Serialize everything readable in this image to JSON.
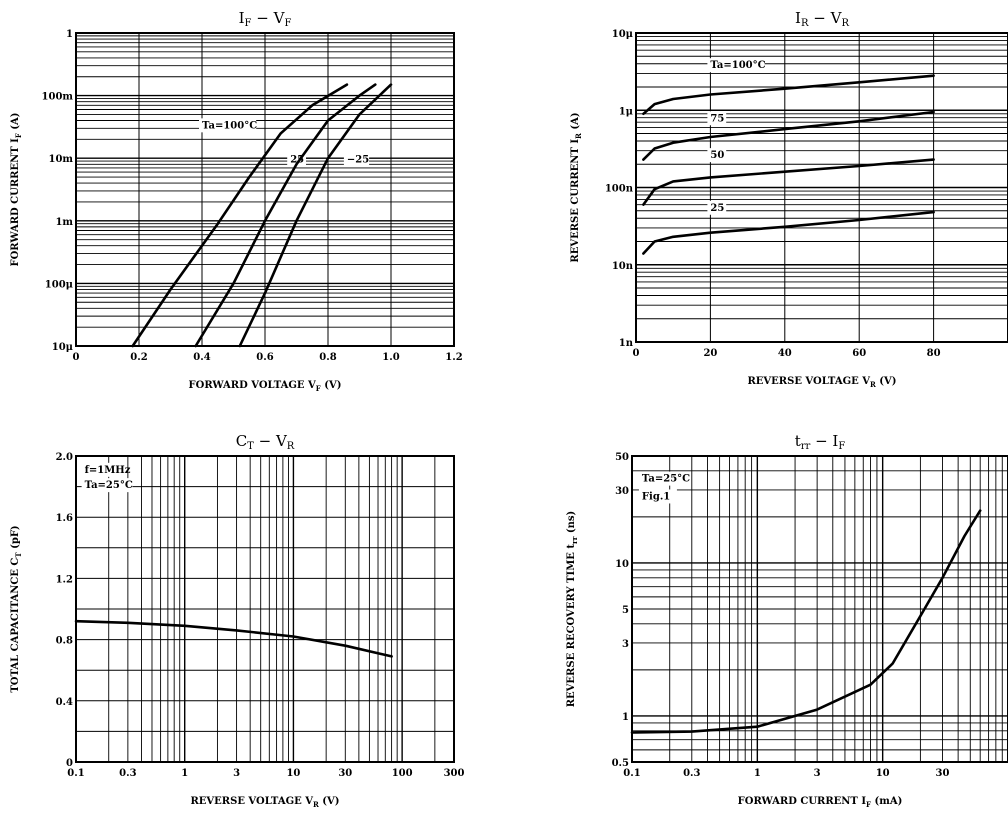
{
  "chart_data": [
    {
      "id": "if_vf",
      "type": "line",
      "title": {
        "main": "I",
        "sub1": "F",
        "sep": " − V",
        "sub2": "F"
      },
      "xlabel": {
        "text": "FORWARD VOLTAGE   V",
        "sub": "F",
        "unit": "   (V)"
      },
      "ylabel": {
        "text": "FORWARD CURRENT   I",
        "sub": "F",
        "unit": "   (A)"
      },
      "x_scale": "linear",
      "y_scale": "log",
      "xlim": [
        0,
        1.2
      ],
      "ylim": [
        1e-05,
        1
      ],
      "x_ticks": [
        {
          "v": 0,
          "label": "0"
        },
        {
          "v": 0.2,
          "label": "0.2"
        },
        {
          "v": 0.4,
          "label": "0.4"
        },
        {
          "v": 0.6,
          "label": "0.6"
        },
        {
          "v": 0.8,
          "label": "0.8"
        },
        {
          "v": 1.0,
          "label": "1.0"
        },
        {
          "v": 1.2,
          "label": "1.2"
        }
      ],
      "y_ticks": [
        {
          "v": 1,
          "label": "1"
        },
        {
          "v": 0.1,
          "label": "100m"
        },
        {
          "v": 0.01,
          "label": "10m"
        },
        {
          "v": 0.001,
          "label": "1m"
        },
        {
          "v": 0.0001,
          "label": "100μ"
        },
        {
          "v": 1e-05,
          "label": "10μ"
        }
      ],
      "grid": true,
      "series": [
        {
          "name": "Ta=100°C",
          "x": [
            0.18,
            0.3,
            0.45,
            0.55,
            0.65,
            0.75,
            0.86
          ],
          "y": [
            1e-05,
            8e-05,
            0.0009,
            0.005,
            0.025,
            0.07,
            0.15
          ]
        },
        {
          "name": "25",
          "x": [
            0.38,
            0.5,
            0.6,
            0.7,
            0.8,
            0.9,
            0.95
          ],
          "y": [
            1e-05,
            0.0001,
            0.001,
            0.008,
            0.04,
            0.1,
            0.15
          ]
        },
        {
          "name": "-25",
          "x": [
            0.52,
            0.6,
            0.7,
            0.8,
            0.9,
            1.0
          ],
          "y": [
            1e-05,
            7e-05,
            0.001,
            0.01,
            0.05,
            0.15
          ]
        }
      ],
      "annotations": [
        {
          "text": "Ta=100°C",
          "x": 0.4,
          "y": 0.03
        },
        {
          "text": "25",
          "x": 0.68,
          "y": 0.0085
        },
        {
          "text": "−25",
          "x": 0.86,
          "y": 0.0085
        }
      ]
    },
    {
      "id": "ir_vr",
      "type": "line",
      "title": {
        "main": "I",
        "sub1": "R",
        "sep": " − V",
        "sub2": "R"
      },
      "xlabel": {
        "text": "REVERSE VOLTAGE   V",
        "sub": "R",
        "unit": "   (V)"
      },
      "ylabel": {
        "text": "REVERSE CURRENT   I",
        "sub": "R",
        "unit": "   (A)"
      },
      "x_scale": "linear",
      "y_scale": "log",
      "xlim": [
        0,
        100
      ],
      "ylim": [
        1e-09,
        1e-05
      ],
      "x_ticks": [
        {
          "v": 0,
          "label": "0"
        },
        {
          "v": 20,
          "label": "20"
        },
        {
          "v": 40,
          "label": "40"
        },
        {
          "v": 60,
          "label": "60"
        },
        {
          "v": 80,
          "label": "80"
        }
      ],
      "y_ticks": [
        {
          "v": 1e-05,
          "label": "10μ"
        },
        {
          "v": 1e-06,
          "label": "1μ"
        },
        {
          "v": 1e-07,
          "label": "100n"
        },
        {
          "v": 1e-08,
          "label": "10n"
        },
        {
          "v": 1e-09,
          "label": "1n"
        }
      ],
      "grid": true,
      "series": [
        {
          "name": "Ta=100°C",
          "x": [
            2,
            5,
            10,
            20,
            40,
            60,
            80
          ],
          "y": [
            9e-07,
            1.2e-06,
            1.4e-06,
            1.6e-06,
            1.9e-06,
            2.3e-06,
            2.8e-06
          ]
        },
        {
          "name": "75",
          "x": [
            2,
            5,
            10,
            20,
            40,
            60,
            80
          ],
          "y": [
            2.3e-07,
            3.2e-07,
            3.8e-07,
            4.5e-07,
            5.7e-07,
            7.2e-07,
            9.5e-07
          ]
        },
        {
          "name": "50",
          "x": [
            2,
            5,
            10,
            20,
            40,
            60,
            80
          ],
          "y": [
            6e-08,
            9.5e-08,
            1.2e-07,
            1.35e-07,
            1.6e-07,
            1.9e-07,
            2.3e-07
          ]
        },
        {
          "name": "25",
          "x": [
            2,
            5,
            10,
            20,
            40,
            60,
            80
          ],
          "y": [
            1.4e-08,
            2e-08,
            2.3e-08,
            2.6e-08,
            3.1e-08,
            3.8e-08,
            4.8e-08
          ]
        }
      ],
      "annotations": [
        {
          "text": "Ta=100°C",
          "x": 20,
          "y": 3.5e-06
        },
        {
          "text": "75",
          "x": 20,
          "y": 7.2e-07
        },
        {
          "text": "50",
          "x": 20,
          "y": 2.4e-07
        },
        {
          "text": "25",
          "x": 20,
          "y": 5e-08
        }
      ]
    },
    {
      "id": "ct_vr",
      "type": "line",
      "title": {
        "main": "C",
        "sub1": "T",
        "sep": " − V",
        "sub2": "R"
      },
      "xlabel": {
        "text": "REVERSE VOLTAGE   V",
        "sub": "R",
        "unit": "   (V)"
      },
      "ylabel": {
        "text": "TOTAL CAPACITANCE   C",
        "sub": "T",
        "unit": "   (pF)"
      },
      "x_scale": "log",
      "y_scale": "linear",
      "xlim": [
        0.1,
        300
      ],
      "ylim": [
        0,
        2.0
      ],
      "x_ticks": [
        {
          "v": 0.1,
          "label": "0.1"
        },
        {
          "v": 0.3,
          "label": "0.3"
        },
        {
          "v": 1,
          "label": "1"
        },
        {
          "v": 3,
          "label": "3"
        },
        {
          "v": 10,
          "label": "10"
        },
        {
          "v": 30,
          "label": "30"
        },
        {
          "v": 100,
          "label": "100"
        },
        {
          "v": 300,
          "label": "300"
        }
      ],
      "y_ticks": [
        {
          "v": 0,
          "label": "0"
        },
        {
          "v": 0.4,
          "label": "0.4"
        },
        {
          "v": 0.8,
          "label": "0.8"
        },
        {
          "v": 1.2,
          "label": "1.2"
        },
        {
          "v": 1.6,
          "label": "1.6"
        },
        {
          "v": 2.0,
          "label": "2.0"
        }
      ],
      "grid": true,
      "series": [
        {
          "name": "",
          "x": [
            0.1,
            0.3,
            1,
            3,
            10,
            30,
            80
          ],
          "y": [
            0.92,
            0.91,
            0.89,
            0.86,
            0.82,
            0.76,
            0.69
          ]
        }
      ],
      "annotations": [
        {
          "text": "f=1MHz",
          "x": 0.12,
          "y": 1.89
        },
        {
          "text": "Ta=25°C",
          "x": 0.12,
          "y": 1.79
        }
      ]
    },
    {
      "id": "trr_if",
      "type": "line",
      "title": {
        "main": "t",
        "sub1": "rr",
        "sep": " − I",
        "sub2": "F"
      },
      "xlabel": {
        "text": "FORWARD CURRENT   I",
        "sub": "F",
        "unit": "   (mA)"
      },
      "ylabel": {
        "text": "REVERSE RECOVERY TIME   t",
        "sub": "rr",
        "unit": "   (ns)"
      },
      "x_scale": "log",
      "y_scale": "log",
      "xlim": [
        0.1,
        100
      ],
      "ylim": [
        0.5,
        50
      ],
      "x_ticks": [
        {
          "v": 0.1,
          "label": "0.1"
        },
        {
          "v": 0.3,
          "label": "0.3"
        },
        {
          "v": 1,
          "label": "1"
        },
        {
          "v": 3,
          "label": "3"
        },
        {
          "v": 10,
          "label": "10"
        },
        {
          "v": 30,
          "label": "30"
        }
      ],
      "y_ticks": [
        {
          "v": 0.5,
          "label": "0.5"
        },
        {
          "v": 1,
          "label": "1"
        },
        {
          "v": 3,
          "label": "3"
        },
        {
          "v": 5,
          "label": "5"
        },
        {
          "v": 10,
          "label": "10"
        },
        {
          "v": 30,
          "label": "30"
        },
        {
          "v": 50,
          "label": "50"
        }
      ],
      "grid": true,
      "series": [
        {
          "name": "",
          "x": [
            0.1,
            0.3,
            1,
            3,
            8,
            12,
            20,
            30,
            45,
            60
          ],
          "y": [
            0.78,
            0.79,
            0.85,
            1.1,
            1.6,
            2.2,
            4.5,
            8,
            15,
            22
          ]
        }
      ],
      "annotations": [
        {
          "text": "Ta=25°C",
          "x": 0.12,
          "y": 34
        },
        {
          "text": "Fig.1",
          "x": 0.12,
          "y": 26
        }
      ]
    }
  ]
}
